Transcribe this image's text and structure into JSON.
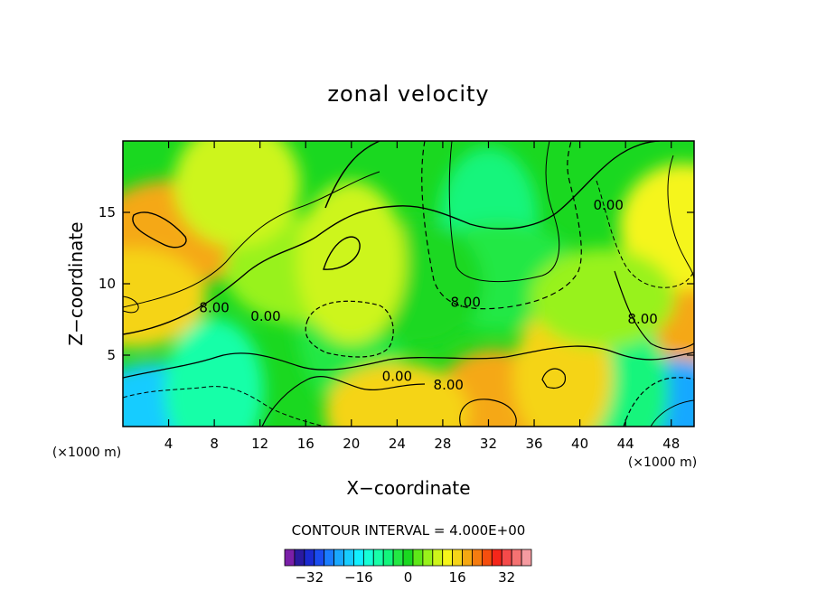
{
  "chart_data": {
    "type": "heatmap",
    "title": "zonal velocity",
    "xlabel": "X−coordinate",
    "ylabel": "Z−coordinate",
    "x_unit": "(×1000 m)",
    "y_unit": "(×1000 m)",
    "xlim": [
      0,
      50
    ],
    "ylim": [
      0,
      20
    ],
    "x_ticks": [
      4,
      8,
      12,
      16,
      20,
      24,
      28,
      32,
      36,
      40,
      44,
      48
    ],
    "y_ticks": [
      5,
      10,
      15
    ],
    "contour_interval_text": "CONTOUR INTERVAL = 4.000E+00",
    "contour_labels": [
      {
        "text": "8.00",
        "x": 8,
        "y": 8
      },
      {
        "text": "0.00",
        "x": 12.5,
        "y": 7.4
      },
      {
        "text": "8.00",
        "x": 30,
        "y": 8.4
      },
      {
        "text": "0.00",
        "x": 42.5,
        "y": 15.2
      },
      {
        "text": "8.00",
        "x": 45.5,
        "y": 7.2
      },
      {
        "text": "0.00",
        "x": 24,
        "y": 3.2
      },
      {
        "text": "8.00",
        "x": 28.5,
        "y": 2.6
      }
    ],
    "colorbar": {
      "tick_labels": [
        "−32",
        "−16",
        "0",
        "16",
        "32"
      ],
      "tick_values": [
        -32,
        -16,
        0,
        16,
        32
      ],
      "levels": [
        -40,
        40
      ],
      "colors": [
        "#7a1fa8",
        "#2a1aa0",
        "#1a2ad0",
        "#1a4cf0",
        "#1a7cff",
        "#19a8ff",
        "#17ccff",
        "#12f0ff",
        "#16ffd6",
        "#18ffa8",
        "#12f57c",
        "#22e844",
        "#1ad820",
        "#5ee818",
        "#98f21a",
        "#cdf51a",
        "#f5f51a",
        "#f5d418",
        "#f5a812",
        "#f57c10",
        "#f54e0e",
        "#f5261a",
        "#f54a4a",
        "#f57272",
        "#f59aa0"
      ]
    },
    "field_description_regions": [
      {
        "x": 4.5,
        "y": 13.5,
        "value": 19
      },
      {
        "x": 49,
        "y": 9,
        "value": 18
      },
      {
        "x": 49,
        "y": 14,
        "value": 14
      },
      {
        "x": 1,
        "y": 9,
        "value": 15
      },
      {
        "x": 32,
        "y": 14.5,
        "value": -7
      },
      {
        "x": 33,
        "y": 10.5,
        "value": -3
      },
      {
        "x": 20,
        "y": 7,
        "value": -2
      },
      {
        "x": 26,
        "y": 10,
        "value": 0
      },
      {
        "x": 3,
        "y": 1,
        "value": -20
      },
      {
        "x": 8,
        "y": 2.5,
        "value": -9
      },
      {
        "x": 47.5,
        "y": 1,
        "value": -22
      },
      {
        "x": 43,
        "y": 2.5,
        "value": -8
      },
      {
        "x": 32.5,
        "y": 1,
        "value": 20
      },
      {
        "x": 24,
        "y": 1,
        "value": 15
      },
      {
        "x": 38.5,
        "y": 3.5,
        "value": 15
      },
      {
        "x": 16,
        "y": 11,
        "value": 5
      },
      {
        "x": 20,
        "y": 11.5,
        "value": 8
      },
      {
        "x": 10,
        "y": 17,
        "value": 9
      },
      {
        "x": 42,
        "y": 9,
        "value": 6
      }
    ]
  }
}
